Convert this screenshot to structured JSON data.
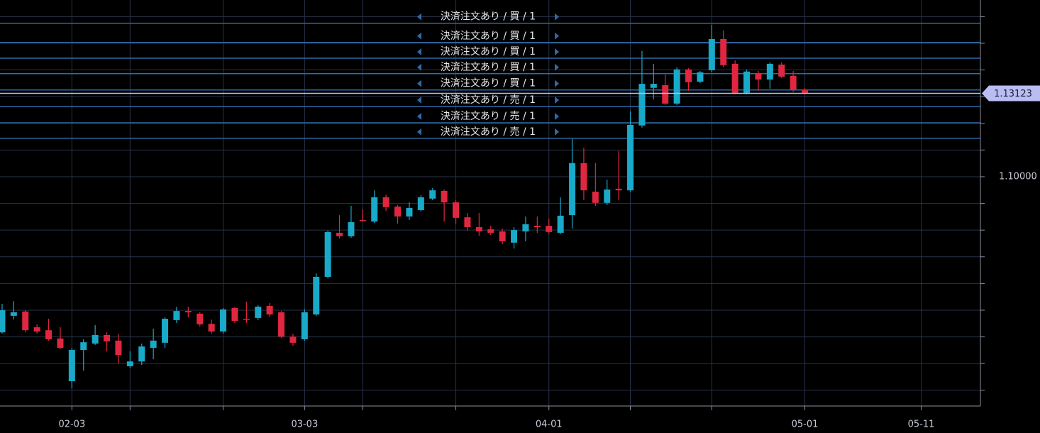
{
  "chart_data": {
    "type": "candlestick",
    "up_color": "#19a9c9",
    "down_color": "#e0273f",
    "grid": true,
    "xlim": [
      -0.18,
      84.09
    ],
    "xticks": [
      {
        "value": 6,
        "label": "02-03"
      },
      {
        "value": 11,
        "label": null
      },
      {
        "value": 19,
        "label": null
      },
      {
        "value": 26,
        "label": "03-03"
      },
      {
        "value": 31,
        "label": null
      },
      {
        "value": 39,
        "label": null
      },
      {
        "value": 47,
        "label": "04-01"
      },
      {
        "value": 54,
        "label": null
      },
      {
        "value": 61,
        "label": null
      },
      {
        "value": 69,
        "label": "05-01"
      },
      {
        "value": 79,
        "label": "05-11"
      }
    ],
    "ylim": [
      1.0141,
      1.1662
    ],
    "yticks": [
      {
        "value": 1.02,
        "label": null
      },
      {
        "value": 1.03,
        "label": null
      },
      {
        "value": 1.04,
        "label": null
      },
      {
        "value": 1.05,
        "label": null
      },
      {
        "value": 1.06,
        "label": null
      },
      {
        "value": 1.07,
        "label": null
      },
      {
        "value": 1.08,
        "label": null
      },
      {
        "value": 1.09,
        "label": null
      },
      {
        "value": 1.1,
        "label": "1.10000"
      },
      {
        "value": 1.11,
        "label": null
      },
      {
        "value": 1.12,
        "label": null
      },
      {
        "value": 1.13,
        "label": null
      },
      {
        "value": 1.14,
        "label": null
      },
      {
        "value": 1.15,
        "label": null
      },
      {
        "value": 1.16,
        "label": null
      }
    ],
    "open": [
      1.0417,
      1.0479,
      1.0495,
      1.0436,
      1.0425,
      1.0394,
      1.0234,
      1.0351,
      1.0375,
      1.0407,
      1.0386,
      1.029,
      1.0308,
      1.0359,
      1.0378,
      1.0463,
      1.0497,
      1.0487,
      1.0449,
      1.042,
      1.0508,
      1.0468,
      1.0471,
      1.0516,
      1.0492,
      1.0401,
      1.0391,
      1.0484,
      1.0625,
      1.079,
      1.0777,
      1.0838,
      1.0832,
      1.0923,
      1.0888,
      1.0851,
      1.0875,
      1.0918,
      1.0947,
      1.0904,
      1.0848,
      1.0811,
      1.0803,
      1.0795,
      1.0753,
      1.0795,
      1.0816,
      1.0816,
      1.079,
      1.0856,
      1.1051,
      1.0944,
      1.0902,
      1.0955,
      1.0949,
      1.1192,
      1.1333,
      1.1343,
      1.1274,
      1.1402,
      1.1356,
      1.1399,
      1.1516,
      1.1423,
      1.1314,
      1.1386,
      1.1364,
      1.142,
      1.1378,
      1.1327
    ],
    "high": [
      1.0524,
      1.0534,
      1.05,
      1.0447,
      1.0468,
      1.0436,
      1.0359,
      1.0391,
      1.0444,
      1.0417,
      1.0412,
      1.0346,
      1.0375,
      1.0431,
      1.0473,
      1.0513,
      1.0513,
      1.0492,
      1.0465,
      1.0508,
      1.0513,
      1.0532,
      1.0519,
      1.0527,
      1.0497,
      1.0412,
      1.0503,
      1.0638,
      1.0798,
      1.0856,
      1.0891,
      1.0878,
      1.0949,
      1.0933,
      1.0894,
      1.0904,
      1.0931,
      1.0957,
      1.0952,
      1.0912,
      1.0864,
      1.0864,
      1.0816,
      1.0806,
      1.0811,
      1.0851,
      1.0851,
      1.0843,
      1.0923,
      1.1141,
      1.1109,
      1.1051,
      1.0989,
      1.1096,
      1.1245,
      1.1471,
      1.1423,
      1.1383,
      1.141,
      1.1407,
      1.1396,
      1.1569,
      1.1548,
      1.1436,
      1.1402,
      1.1396,
      1.1428,
      1.1428,
      1.1396,
      1.1333
    ],
    "low": [
      1.0412,
      1.0465,
      1.0417,
      1.0412,
      1.0386,
      1.0354,
      1.0207,
      1.0274,
      1.037,
      1.0346,
      1.03,
      1.0284,
      1.0295,
      1.0316,
      1.0359,
      1.0452,
      1.0473,
      1.0439,
      1.0412,
      1.0412,
      1.0452,
      1.0452,
      1.0463,
      1.0476,
      1.0396,
      1.0367,
      1.0386,
      1.0479,
      1.062,
      1.0769,
      1.0771,
      1.0832,
      1.0827,
      1.0872,
      1.0824,
      1.0838,
      1.087,
      1.0912,
      1.0832,
      1.0824,
      1.0798,
      1.0779,
      1.0782,
      1.0747,
      1.0731,
      1.0758,
      1.079,
      1.0785,
      1.0785,
      1.0806,
      1.0912,
      1.0891,
      1.0894,
      1.0912,
      1.0944,
      1.1184,
      1.129,
      1.1269,
      1.1269,
      1.1322,
      1.1351,
      1.1391,
      1.141,
      1.1309,
      1.1309,
      1.1322,
      1.133,
      1.137,
      1.1317,
      1.131
    ],
    "close": [
      1.05,
      1.0492,
      1.0425,
      1.042,
      1.0391,
      1.0359,
      1.0351,
      1.038,
      1.0407,
      1.0383,
      1.0332,
      1.0308,
      1.0364,
      1.0386,
      1.0468,
      1.0497,
      1.0492,
      1.0447,
      1.042,
      1.0503,
      1.046,
      1.0465,
      1.0513,
      1.0484,
      1.0401,
      1.0378,
      1.0492,
      1.0625,
      1.0793,
      1.0777,
      1.083,
      1.0835,
      1.0923,
      1.0886,
      1.0851,
      1.0883,
      1.0923,
      1.0949,
      1.0904,
      1.0846,
      1.0811,
      1.0795,
      1.079,
      1.0758,
      1.08,
      1.0822,
      1.0811,
      1.0793,
      1.0854,
      1.1051,
      1.0949,
      1.0902,
      1.0952,
      1.0949,
      1.1194,
      1.1348,
      1.1348,
      1.1274,
      1.1402,
      1.1354,
      1.1391,
      1.1516,
      1.1418,
      1.1314,
      1.1394,
      1.1364,
      1.1423,
      1.1375,
      1.1325,
      1.13123
    ],
    "current_price": 1.13123,
    "orders": [
      {
        "label": "決済注文あり / 買 / 1",
        "price": 1.1575
      },
      {
        "label": "決済注文あり / 買 / 1",
        "price": 1.1503
      },
      {
        "label": "決済注文あり / 買 / 1",
        "price": 1.1444
      },
      {
        "label": "決済注文あり / 買 / 1",
        "price": 1.1386
      },
      {
        "label": "決済注文あり / 買 / 1",
        "price": 1.1325
      },
      {
        "label": "決済注文あり / 売 / 1",
        "price": 1.1263
      },
      {
        "label": "決済注文あり / 売 / 1",
        "price": 1.1202
      },
      {
        "label": "決済注文あり / 売 / 1",
        "price": 1.1144
      }
    ]
  }
}
